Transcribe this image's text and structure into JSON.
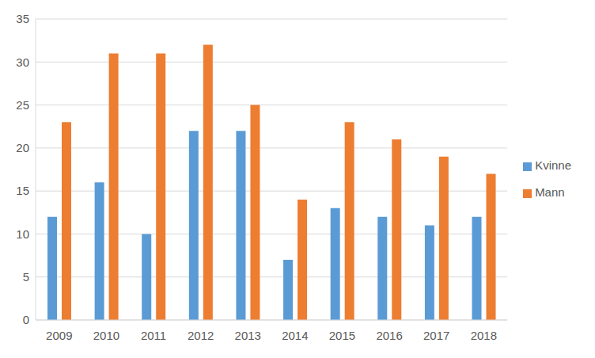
{
  "chart_data": {
    "type": "bar",
    "categories": [
      "2009",
      "2010",
      "2011",
      "2012",
      "2013",
      "2014",
      "2015",
      "2016",
      "2017",
      "2018"
    ],
    "series": [
      {
        "name": "Kvinne",
        "color": "#5b9bd5",
        "values": [
          12,
          16,
          10,
          22,
          22,
          7,
          13,
          12,
          11,
          12
        ]
      },
      {
        "name": "Mann",
        "color": "#ed7d31",
        "values": [
          23,
          31,
          31,
          32,
          25,
          14,
          23,
          21,
          19,
          17
        ]
      }
    ],
    "ylim": [
      0,
      35
    ],
    "yticks": [
      0,
      5,
      10,
      15,
      20,
      25,
      30,
      35
    ],
    "grid": true,
    "legend": "right"
  }
}
